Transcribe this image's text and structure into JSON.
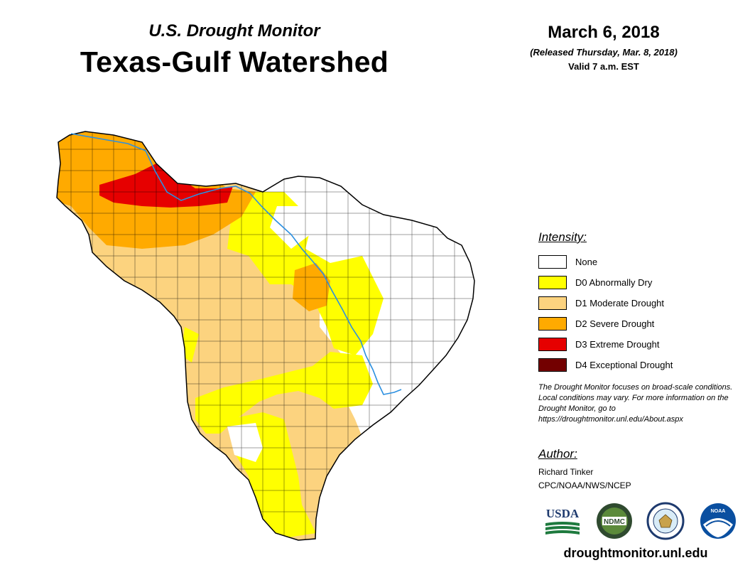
{
  "header": {
    "pre_title": "U.S. Drought Monitor",
    "title": "Texas-Gulf Watershed"
  },
  "date": {
    "main": "March 6, 2018",
    "released": "(Released Thursday, Mar. 8, 2018)",
    "valid": "Valid 7 a.m. EST"
  },
  "legend": {
    "title": "Intensity:",
    "items": [
      {
        "label": "None",
        "color": "#ffffff"
      },
      {
        "label": "D0 Abnormally Dry",
        "color": "#ffff00"
      },
      {
        "label": "D1 Moderate Drought",
        "color": "#fcd37f"
      },
      {
        "label": "D2 Severe Drought",
        "color": "#ffaa00"
      },
      {
        "label": "D3 Extreme Drought",
        "color": "#e60000"
      },
      {
        "label": "D4 Exceptional Drought",
        "color": "#730000"
      }
    ]
  },
  "note": "The Drought Monitor focuses on broad-scale conditions. Local conditions may vary. For more information on the Drought Monitor, go to https://droughtmonitor.unl.edu/About.aspx",
  "author": {
    "heading": "Author:",
    "name": "Richard Tinker",
    "org": "CPC/NOAA/NWS/NCEP"
  },
  "logos": {
    "usda": "USDA",
    "ndmc": "NDMC",
    "noaa": "NOAA"
  },
  "footer": {
    "url": "droughtmonitor.unl.edu"
  },
  "map": {
    "river_color": "#2b8fe0",
    "county_line_color": "#000000"
  }
}
